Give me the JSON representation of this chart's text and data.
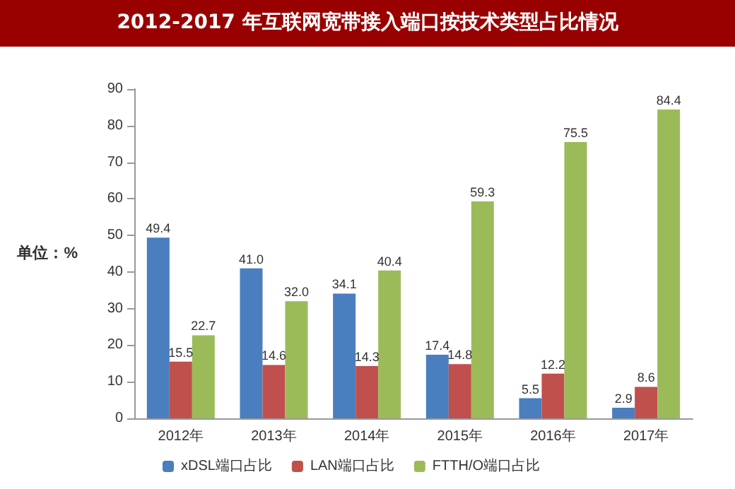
{
  "chart_data": {
    "type": "bar",
    "title": "2012-2017 年互联网宽带接入端口按技术类型占比情况",
    "ylabel": "单位：%",
    "categories": [
      "2012年",
      "2013年",
      "2014年",
      "2015年",
      "2016年",
      "2017年"
    ],
    "series": [
      {
        "name": "xDSL端口占比",
        "color": "#4a7ebf",
        "values": [
          49.4,
          41.0,
          34.1,
          17.4,
          5.5,
          2.9
        ],
        "value_labels": [
          "49.4",
          "41.0",
          "34.1",
          "17.4",
          "5.5",
          "2.9"
        ]
      },
      {
        "name": "LAN端口占比",
        "color": "#c0504d",
        "values": [
          15.5,
          14.6,
          14.3,
          14.8,
          12.2,
          8.6
        ],
        "value_labels": [
          "15.5",
          "14.6",
          "14.3",
          "14.8",
          "12.2",
          "8.6"
        ]
      },
      {
        "name": "FTTH/O端口占比",
        "color": "#9bbb59",
        "values": [
          22.7,
          32.0,
          40.4,
          59.3,
          75.5,
          84.4
        ],
        "value_labels": [
          "22.7",
          "32.0",
          "40.4",
          "59.3",
          "75.5",
          "84.4"
        ]
      }
    ],
    "ylim": [
      0,
      90
    ],
    "yticks": [
      0,
      10,
      20,
      30,
      40,
      50,
      60,
      70,
      80,
      90
    ],
    "grid": false,
    "legend": "bottom"
  }
}
